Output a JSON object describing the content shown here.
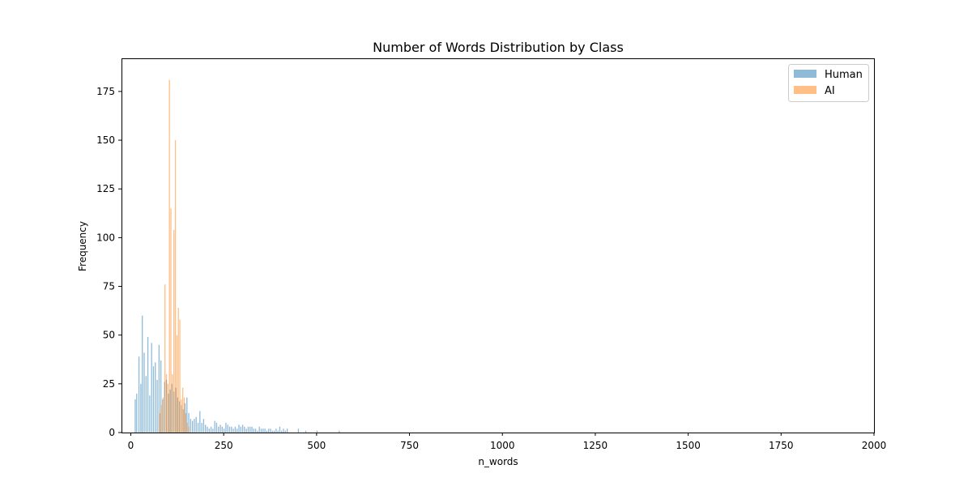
{
  "chart_data": {
    "type": "bar",
    "title": "Number of Words Distribution by Class",
    "xlabel": "n_words",
    "ylabel": "Frequency",
    "xlim": [
      -25,
      2000
    ],
    "ylim": [
      0,
      192
    ],
    "xticks": [
      0,
      250,
      500,
      750,
      1000,
      1250,
      1500,
      1750,
      2000
    ],
    "yticks": [
      0,
      25,
      50,
      75,
      100,
      125,
      150,
      175
    ],
    "grid": false,
    "legend": "top-right",
    "colors": {
      "Human": "#1f77b4",
      "AI": "#ff7f0e"
    },
    "series": [
      {
        "name": "Human",
        "alpha": 0.5,
        "x": [
          12,
          16,
          22,
          27,
          31,
          36,
          41,
          46,
          51,
          56,
          61,
          66,
          71,
          76,
          81,
          86,
          91,
          96,
          101,
          106,
          111,
          116,
          121,
          126,
          131,
          136,
          141,
          146,
          151,
          156,
          161,
          166,
          171,
          176,
          181,
          186,
          191,
          196,
          201,
          206,
          211,
          216,
          221,
          226,
          231,
          236,
          241,
          246,
          251,
          256,
          261,
          266,
          271,
          276,
          281,
          286,
          291,
          296,
          301,
          306,
          311,
          316,
          321,
          326,
          331,
          336,
          341,
          346,
          351,
          356,
          361,
          366,
          371,
          376,
          381,
          386,
          391,
          396,
          401,
          406,
          411,
          416,
          421,
          451,
          471,
          501,
          561
        ],
        "values": [
          17,
          20,
          39,
          25,
          60,
          41,
          29,
          49,
          19,
          46,
          34,
          36,
          27,
          45,
          37,
          17,
          26,
          27,
          20,
          22,
          25,
          21,
          23,
          18,
          16,
          14,
          12,
          15,
          18,
          10,
          7,
          6,
          7,
          8,
          5,
          11,
          5,
          7,
          4,
          3,
          2,
          3,
          2,
          6,
          5,
          3,
          4,
          3,
          2,
          5,
          4,
          3,
          3,
          2,
          3,
          2,
          4,
          3,
          4,
          3,
          2,
          3,
          3,
          3,
          2,
          2,
          1,
          3,
          2,
          2,
          2,
          1,
          2,
          2,
          1,
          1,
          2,
          1,
          3,
          1,
          2,
          1,
          2,
          2,
          1,
          1,
          1
        ]
      },
      {
        "name": "AI",
        "alpha": 0.5,
        "x": [
          78,
          82,
          87,
          92,
          96,
          100,
          104,
          108,
          112,
          116,
          120,
          124,
          128,
          132,
          136,
          140,
          144,
          148,
          152,
          156
        ],
        "values": [
          10,
          14,
          18,
          76,
          30,
          25,
          181,
          115,
          30,
          104,
          150,
          50,
          64,
          58,
          17,
          23,
          18,
          10,
          5,
          3
        ]
      }
    ]
  }
}
